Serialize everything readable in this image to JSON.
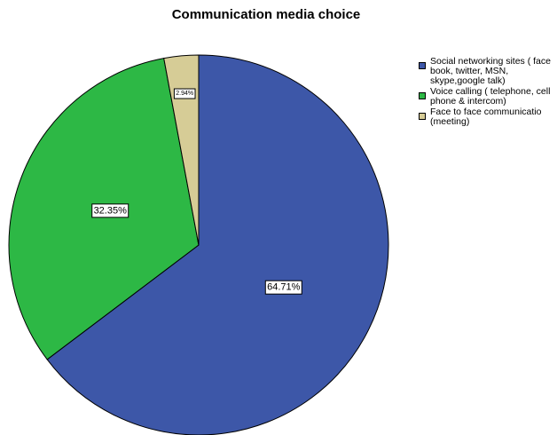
{
  "chart_data": {
    "type": "pie",
    "title": "Communication media choice",
    "slices": [
      {
        "name": "Social networking sites ( face book, twitter, MSN, skype,google talk)",
        "value": 64.71,
        "label": "64.71%",
        "color": "#3d57a8"
      },
      {
        "name": "Voice calling ( telephone, cell phone & intercom)",
        "value": 32.35,
        "label": "32.35%",
        "color": "#2db845"
      },
      {
        "name": "Face to face communicatio (meeting)",
        "value": 2.94,
        "label": "2.94%",
        "color": "#d6cc96"
      }
    ],
    "start_angle": "top",
    "direction": "clockwise",
    "legend_position": "right"
  }
}
